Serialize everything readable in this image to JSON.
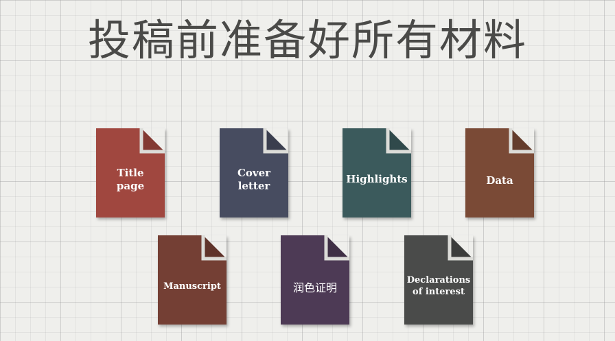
{
  "title": "投稿前准备好所有材料",
  "documents": [
    {
      "label": "Title\npage",
      "color": "#a0473f"
    },
    {
      "label": "Cover\nletter",
      "color": "#474c60"
    },
    {
      "label": "Highlights",
      "color": "#3b5a5c"
    },
    {
      "label": "Data",
      "color": "#7a4a36"
    },
    {
      "label": "Manuscript",
      "color": "#743f34"
    },
    {
      "label": "润色证明",
      "color": "#4d3a55"
    },
    {
      "label": "Declarations\nof interest",
      "color": "#4a4b4a"
    }
  ]
}
